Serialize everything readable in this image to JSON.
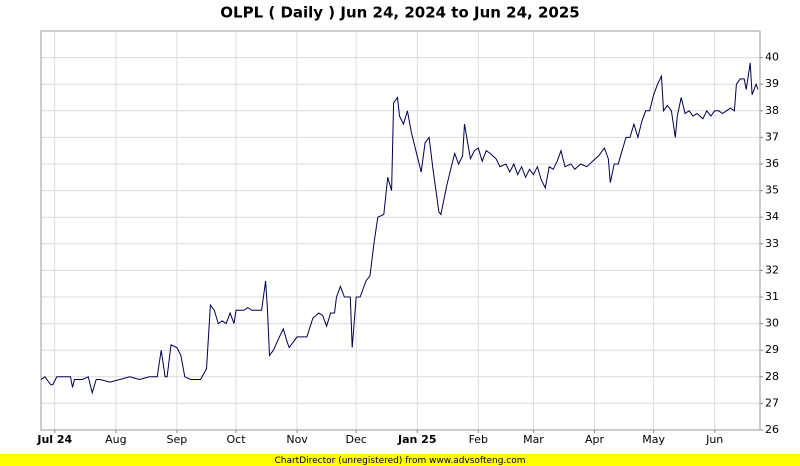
{
  "chart_data": {
    "type": "line",
    "title": "OLPL ( Daily ) Jun 24, 2024 to Jun 24, 2025",
    "footer": "ChartDirector (unregistered) from www.advsofteng.com",
    "xlim": [
      0,
      365
    ],
    "ylim": [
      26,
      41
    ],
    "xticks": [
      {
        "value": 7,
        "label": "Jul 24"
      },
      {
        "value": 38,
        "label": "Aug"
      },
      {
        "value": 69,
        "label": "Sep"
      },
      {
        "value": 99,
        "label": "Oct"
      },
      {
        "value": 130,
        "label": "Nov"
      },
      {
        "value": 160,
        "label": "Dec"
      },
      {
        "value": 191,
        "label": "Jan 25"
      },
      {
        "value": 222,
        "label": "Feb"
      },
      {
        "value": 250,
        "label": "Mar"
      },
      {
        "value": 281,
        "label": "Apr"
      },
      {
        "value": 311,
        "label": "May"
      },
      {
        "value": 342,
        "label": "Jun"
      }
    ],
    "yticks": [
      26,
      27,
      28,
      29,
      30,
      31,
      32,
      33,
      34,
      35,
      36,
      37,
      38,
      39,
      40
    ],
    "grid": true,
    "series": [
      {
        "color": "#000050",
        "x": [
          0,
          2,
          5,
          6,
          8,
          11,
          15,
          16,
          17,
          21,
          24,
          25,
          26,
          28,
          30,
          35,
          40,
          45,
          50,
          55,
          59,
          61,
          63,
          64,
          66,
          69,
          71,
          73,
          76,
          81,
          84,
          86,
          88,
          90,
          92,
          94,
          96,
          98,
          99,
          103,
          105,
          107,
          112,
          114,
          115,
          116,
          118,
          121,
          123,
          125,
          126,
          128,
          130,
          135,
          138,
          141,
          143,
          145,
          147,
          149,
          150,
          152,
          154,
          157,
          158,
          160,
          162,
          165,
          167,
          169,
          171,
          174,
          176,
          178,
          179,
          181,
          182,
          184,
          186,
          188,
          191,
          193,
          195,
          197,
          199,
          202,
          203,
          206,
          208,
          210,
          212,
          214,
          215,
          218,
          220,
          222,
          224,
          226,
          228,
          231,
          233,
          236,
          238,
          240,
          242,
          244,
          246,
          248,
          250,
          252,
          254,
          256,
          258,
          260,
          262,
          264,
          266,
          269,
          271,
          274,
          277,
          280,
          283,
          286,
          288,
          289,
          291,
          293,
          295,
          297,
          299,
          301,
          303,
          305,
          307,
          309,
          311,
          313,
          315,
          316,
          318,
          320,
          322,
          323,
          325,
          327,
          329,
          331,
          333,
          336,
          338,
          340,
          342,
          344,
          346,
          348,
          350,
          352,
          353,
          355,
          357,
          358,
          360,
          361,
          363,
          364
        ],
        "values": [
          27.9,
          28.0,
          27.7,
          27.7,
          28.0,
          28.0,
          28.0,
          27.6,
          27.9,
          27.9,
          28.0,
          27.7,
          27.4,
          27.9,
          27.9,
          27.8,
          27.9,
          28.0,
          27.9,
          28.0,
          28.0,
          29.0,
          28.0,
          28.0,
          29.2,
          29.1,
          28.8,
          28.0,
          27.9,
          27.9,
          28.3,
          30.7,
          30.5,
          30.0,
          30.1,
          30.0,
          30.4,
          30.0,
          30.5,
          30.5,
          30.6,
          30.5,
          30.5,
          31.6,
          30.5,
          28.8,
          29.0,
          29.5,
          29.8,
          29.3,
          29.1,
          29.3,
          29.5,
          29.5,
          30.2,
          30.4,
          30.3,
          29.9,
          30.4,
          30.4,
          31.0,
          31.4,
          31.0,
          31.0,
          29.1,
          31.0,
          31.0,
          31.6,
          31.8,
          33.0,
          34.0,
          34.1,
          35.5,
          35.0,
          38.3,
          38.5,
          37.8,
          37.5,
          38.0,
          37.2,
          36.3,
          35.7,
          36.8,
          37.0,
          35.8,
          34.2,
          34.1,
          35.2,
          35.8,
          36.4,
          36.0,
          36.3,
          37.5,
          36.2,
          36.5,
          36.6,
          36.1,
          36.5,
          36.4,
          36.2,
          35.9,
          36.0,
          35.7,
          36.0,
          35.6,
          35.9,
          35.5,
          35.8,
          35.6,
          35.9,
          35.4,
          35.1,
          35.9,
          35.8,
          36.1,
          36.5,
          35.9,
          36.0,
          35.8,
          36.0,
          35.9,
          36.1,
          36.3,
          36.6,
          36.2,
          35.3,
          36.0,
          36.0,
          36.5,
          37.0,
          37.0,
          37.5,
          37.0,
          37.6,
          38.0,
          38.0,
          38.6,
          39.0,
          39.3,
          38.0,
          38.2,
          38.0,
          37.0,
          37.8,
          38.5,
          37.9,
          38.0,
          37.8,
          37.9,
          37.7,
          38.0,
          37.8,
          38.0,
          38.0,
          37.9,
          38.0,
          38.1,
          38.0,
          39.0,
          39.2,
          39.2,
          38.8,
          39.8,
          38.6,
          39.0,
          38.8
        ]
      }
    ]
  }
}
